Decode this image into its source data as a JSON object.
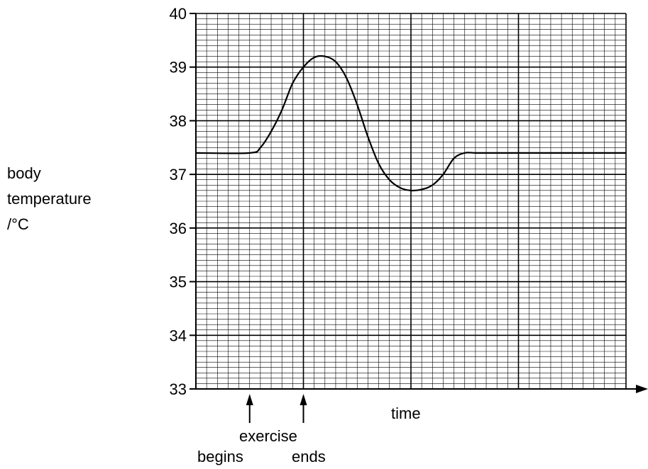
{
  "chart_data": {
    "type": "line",
    "title": "",
    "ylabel_lines": [
      "body",
      "temperature",
      "/°C"
    ],
    "xlabel": "time",
    "ylim": [
      33,
      40
    ],
    "xlim": [
      0,
      40
    ],
    "y_ticks": [
      "33",
      "34",
      "35",
      "36",
      "37",
      "38",
      "39",
      "40"
    ],
    "grid": true,
    "series": [
      {
        "x": [
          0,
          5,
          6,
          7,
          8,
          9,
          10,
          11,
          12,
          13,
          14,
          15,
          16,
          17,
          18,
          19,
          20,
          21,
          22,
          23,
          24,
          25,
          26,
          27,
          28,
          29,
          30,
          32,
          35,
          38,
          40
        ],
        "y": [
          37.4,
          37.4,
          37.5,
          37.8,
          38.2,
          38.7,
          39.0,
          39.18,
          39.2,
          39.1,
          38.8,
          38.3,
          37.7,
          37.2,
          36.9,
          36.75,
          36.7,
          36.72,
          36.8,
          37.0,
          37.3,
          37.4,
          37.4,
          37.4,
          37.4,
          37.4,
          37.4,
          37.4,
          37.4,
          37.4,
          37.4
        ]
      }
    ],
    "annotations": [
      {
        "text": "exercise",
        "x": 7.5
      },
      {
        "text": "begins",
        "x": 5
      },
      {
        "text": "ends",
        "x": 10
      }
    ]
  }
}
